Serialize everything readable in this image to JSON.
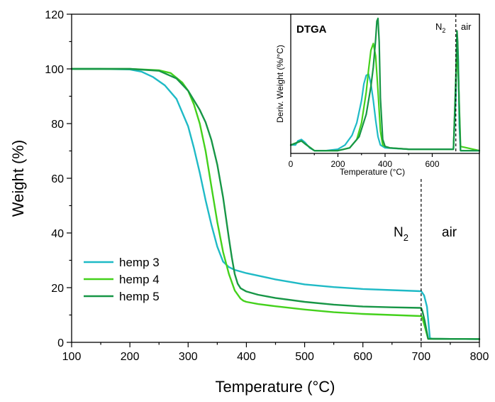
{
  "chart_data": [
    {
      "type": "line",
      "xlabel": "Temperature (°C)",
      "ylabel": "Weight (%)",
      "xlim": [
        100,
        800
      ],
      "ylim": [
        0,
        120
      ],
      "xticks": [
        100,
        200,
        300,
        400,
        500,
        600,
        700,
        800
      ],
      "yticks": [
        0,
        20,
        40,
        60,
        80,
        100,
        120
      ],
      "grid": false,
      "legend": "bottom-left",
      "annotations": [
        {
          "text": "N",
          "sub": "2"
        },
        {
          "text": "air"
        }
      ],
      "divider_x": 700,
      "series": [
        {
          "name": "hemp 3",
          "color": "#1fbac6",
          "x": [
            100,
            150,
            200,
            220,
            240,
            260,
            280,
            300,
            310,
            320,
            330,
            340,
            350,
            360,
            370,
            380,
            400,
            450,
            500,
            550,
            600,
            650,
            700,
            705,
            710,
            715,
            720,
            800
          ],
          "y": [
            100,
            100,
            99.8,
            99,
            97,
            94,
            89,
            79,
            71,
            62,
            52,
            43,
            35,
            29.5,
            27.5,
            26.5,
            25.3,
            23,
            21.2,
            20.2,
            19.5,
            19.1,
            18.7,
            17.2,
            13,
            1.5,
            1.3,
            1.2
          ]
        },
        {
          "name": "hemp 4",
          "color": "#44d11c",
          "x": [
            100,
            200,
            250,
            270,
            290,
            300,
            310,
            320,
            330,
            340,
            350,
            360,
            370,
            380,
            390,
            395,
            400,
            420,
            450,
            500,
            550,
            600,
            650,
            700,
            702,
            706,
            712,
            800
          ],
          "y": [
            100,
            100,
            99.5,
            98.5,
            95,
            92,
            87,
            80,
            70,
            57,
            44,
            33,
            25,
            19,
            16,
            15.2,
            14.8,
            14,
            13.2,
            12,
            11,
            10.4,
            10,
            9.6,
            9,
            6,
            1.3,
            1.2
          ]
        },
        {
          "name": "hemp 5",
          "color": "#179646",
          "x": [
            100,
            200,
            250,
            280,
            300,
            320,
            330,
            340,
            350,
            360,
            370,
            375,
            380,
            385,
            390,
            400,
            420,
            450,
            500,
            550,
            600,
            650,
            700,
            702,
            706,
            712,
            800
          ],
          "y": [
            100,
            100,
            99.3,
            96.5,
            92,
            85,
            80.5,
            74,
            65,
            53,
            38,
            31,
            25,
            21.5,
            19.8,
            18.6,
            17.4,
            16.2,
            14.8,
            13.8,
            13.1,
            12.8,
            12.6,
            11.5,
            8,
            1.3,
            1.2
          ]
        }
      ]
    },
    {
      "type": "line",
      "title": "DTGA",
      "xlabel": "Temperature (°C)",
      "ylabel": "Deriv. Weight (%/°C)",
      "xlim": [
        0,
        800
      ],
      "ylim": [
        0,
        1
      ],
      "xticks": [
        0,
        200,
        400,
        600
      ],
      "yticks": [],
      "grid": false,
      "annotations": [
        {
          "text": "N",
          "sub": "2"
        },
        {
          "text": "air"
        }
      ],
      "divider_x": 700,
      "series": [
        {
          "color": "#1fbac6",
          "x": [
            0,
            20,
            30,
            45,
            60,
            80,
            100,
            150,
            200,
            230,
            260,
            280,
            300,
            310,
            320,
            330,
            340,
            350,
            360,
            370,
            380,
            400,
            500,
            600,
            690,
            700,
            705,
            710,
            715,
            720,
            800
          ],
          "y": [
            0.06,
            0.06,
            0.09,
            0.1,
            0.08,
            0.04,
            0.02,
            0.02,
            0.03,
            0.06,
            0.13,
            0.22,
            0.38,
            0.5,
            0.56,
            0.57,
            0.5,
            0.38,
            0.24,
            0.12,
            0.06,
            0.04,
            0.03,
            0.03,
            0.03,
            0.4,
            0.85,
            0.7,
            0.2,
            0.02,
            0.02
          ]
        },
        {
          "color": "#44d11c",
          "x": [
            0,
            30,
            45,
            60,
            100,
            200,
            250,
            280,
            300,
            320,
            330,
            340,
            350,
            360,
            370,
            380,
            390,
            400,
            420,
            500,
            600,
            690,
            700,
            705,
            712,
            720,
            800
          ],
          "y": [
            0.06,
            0.08,
            0.09,
            0.07,
            0.02,
            0.02,
            0.04,
            0.1,
            0.22,
            0.44,
            0.6,
            0.74,
            0.79,
            0.7,
            0.45,
            0.16,
            0.06,
            0.05,
            0.04,
            0.03,
            0.03,
            0.03,
            0.5,
            0.78,
            0.5,
            0.05,
            0.02
          ]
        },
        {
          "color": "#179646",
          "x": [
            0,
            30,
            45,
            60,
            100,
            200,
            250,
            290,
            320,
            340,
            350,
            360,
            365,
            370,
            375,
            380,
            390,
            400,
            420,
            500,
            600,
            690,
            700,
            705,
            708,
            715,
            720,
            800
          ],
          "y": [
            0.06,
            0.08,
            0.09,
            0.07,
            0.02,
            0.02,
            0.04,
            0.12,
            0.28,
            0.48,
            0.62,
            0.82,
            0.95,
            0.97,
            0.8,
            0.4,
            0.1,
            0.05,
            0.04,
            0.03,
            0.03,
            0.03,
            0.55,
            0.88,
            0.8,
            0.3,
            0.02,
            0.02
          ]
        }
      ]
    }
  ]
}
